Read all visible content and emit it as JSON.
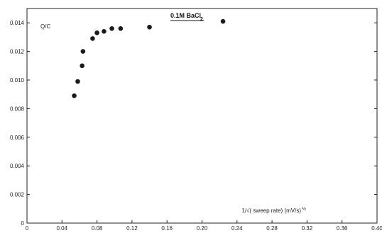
{
  "chart_data": {
    "type": "scatter",
    "title": "0.1M BaCl",
    "title_subscript": "2",
    "ylabel": "Q/C",
    "xlabel": "1/√( sweep rate)  (mV/s)",
    "xlabel_exponent": "½",
    "xlim": [
      0,
      0.4
    ],
    "ylim": [
      0,
      0.015
    ],
    "xticks": [
      "0",
      "0.04",
      "0.08",
      "0.12",
      "0.16",
      "0.20",
      "0.24",
      "0.28",
      "0.32",
      "0.36",
      "0.40"
    ],
    "yticks": [
      "0",
      "0.002",
      "0.004",
      "0.006",
      "0.008",
      "0.010",
      "0.012",
      "0.014"
    ],
    "grid": false,
    "marker_color": "#1a1a1a",
    "series": [
      {
        "x": [
          0.054,
          0.058,
          0.063,
          0.064,
          0.075,
          0.08,
          0.088,
          0.097,
          0.107,
          0.14,
          0.224
        ],
        "y": [
          0.0089,
          0.0099,
          0.011,
          0.012,
          0.0129,
          0.0133,
          0.0134,
          0.0136,
          0.0136,
          0.0137,
          0.0141
        ]
      }
    ]
  }
}
